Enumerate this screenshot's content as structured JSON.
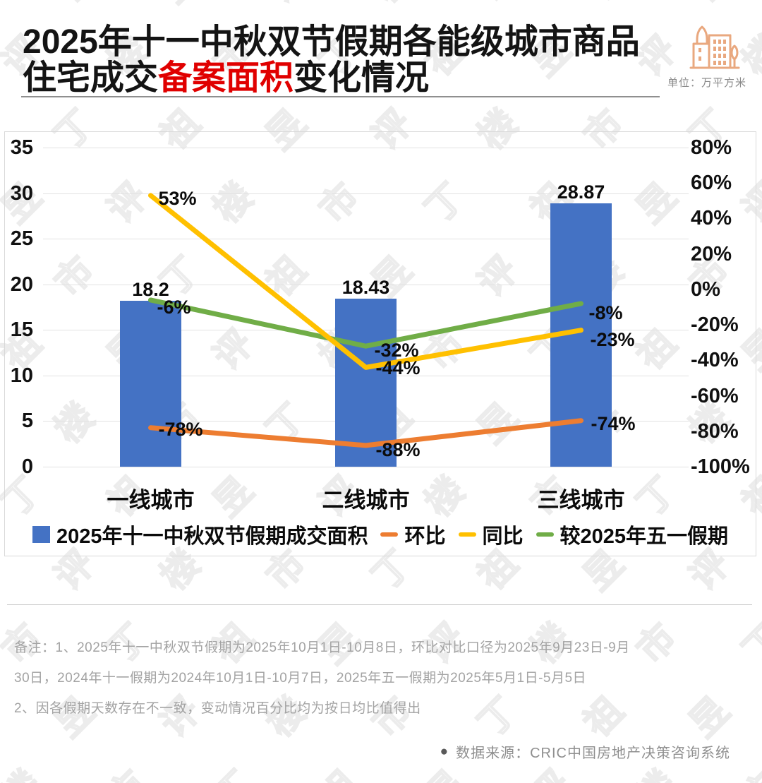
{
  "header": {
    "title_line1": "2025年十一中秋双节假期各能级城市商品",
    "title_line2_prefix": "住宅成交",
    "title_line2_highlight": "备案面积",
    "title_line2_suffix": "变化情况",
    "unit_label": "单位：万平方米",
    "highlight_color": "#e00000"
  },
  "chart_data": {
    "type": "bar+line combo",
    "categories": [
      "一线城市",
      "二线城市",
      "三线城市"
    ],
    "bar_series": {
      "name": "2025年十一中秋双节假期成交面积",
      "values": [
        18.2,
        18.43,
        28.87
      ],
      "labels": [
        "18.2",
        "18.43",
        "28.87"
      ],
      "color": "#4472C4",
      "axis": "left"
    },
    "line_series": [
      {
        "name": "环比",
        "values": [
          -78,
          -88,
          -74
        ],
        "labels": [
          "-78%",
          "-88%",
          "-74%"
        ],
        "color": "#ED7D31",
        "axis": "right"
      },
      {
        "name": "同比",
        "values": [
          53,
          -44,
          -23
        ],
        "labels": [
          "53%",
          "-44%",
          "-23%"
        ],
        "color": "#FFC000",
        "axis": "right"
      },
      {
        "name": "较2025年五一假期",
        "values": [
          -6,
          -32,
          -8
        ],
        "labels": [
          "-6%",
          "-32%",
          "-8%"
        ],
        "color": "#70AD47",
        "axis": "right"
      }
    ],
    "left_axis": {
      "ticks": [
        "35",
        "30",
        "25",
        "20",
        "15",
        "10",
        "5",
        "0"
      ],
      "min": 0,
      "max": 35
    },
    "right_axis": {
      "ticks": [
        "80%",
        "60%",
        "40%",
        "20%",
        "0%",
        "-20%",
        "-40%",
        "-60%",
        "-80%",
        "-100%"
      ],
      "min": -100,
      "max": 80
    },
    "grid": "horizontal",
    "legend_position": "bottom"
  },
  "notes": {
    "lines": [
      "备注：1、2025年十一中秋双节假期为2025年10月1日-10月8日，环比对比口径为2025年9月23日-9月",
      "30日，2024年十一假期为2024年10月1日-10月7日，2025年五一假期为2025年5月1日-5月5日",
      "2、因各假期天数存在不一致，变动情况百分比均为按日均比值得出"
    ]
  },
  "source": {
    "bullet": "●",
    "text": "数据来源：CRIC中国房地产决策咨询系统"
  },
  "watermark": {
    "text": "丁祖昱评楼市"
  },
  "icons": {
    "building_color": "#E9A87F"
  }
}
